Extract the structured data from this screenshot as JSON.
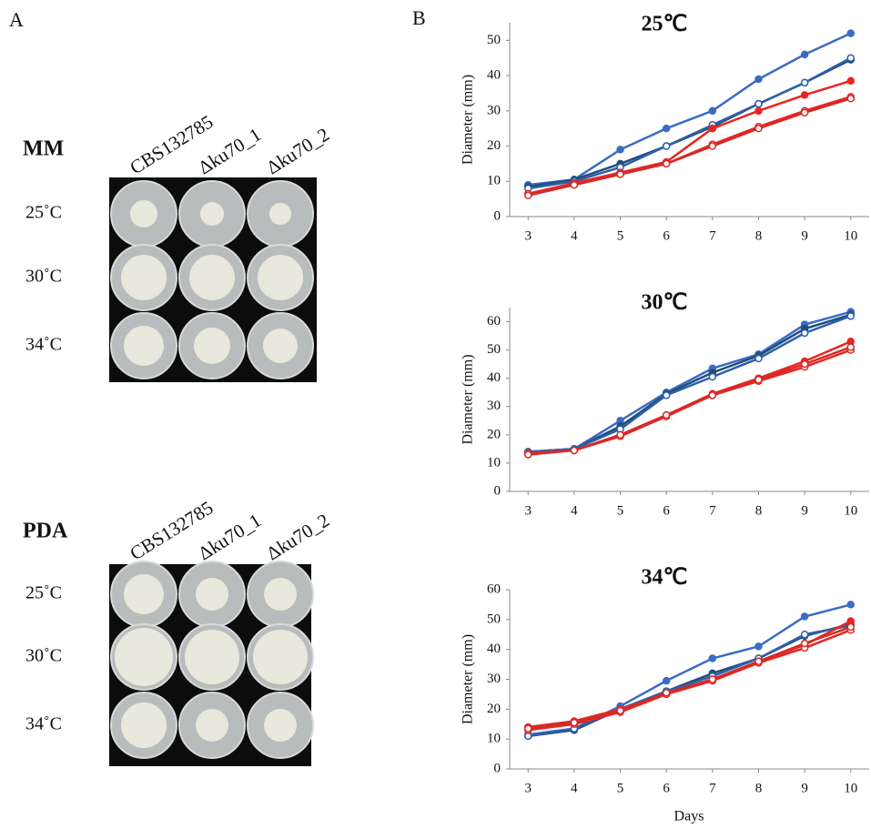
{
  "panel_a": {
    "label": "A",
    "groups": [
      {
        "medium": "MM",
        "columns": [
          "CBS132785",
          "Δku70_1",
          "Δku70_2"
        ],
        "rows": [
          "25˚C",
          "30˚C",
          "34˚C"
        ]
      },
      {
        "medium": "PDA",
        "columns": [
          "CBS132785",
          "Δku70_1",
          "Δku70_2"
        ],
        "rows": [
          "25˚C",
          "30˚C",
          "34˚C"
        ]
      }
    ]
  },
  "panel_b_label": "B",
  "chart_data": [
    {
      "type": "line",
      "title": "25℃",
      "y_label": "Diameter (mm)",
      "x": [
        3,
        4,
        5,
        6,
        7,
        8,
        9,
        10
      ],
      "xlim": [
        2.6,
        10.4
      ],
      "xticks": [
        3,
        4,
        5,
        6,
        7,
        8,
        9,
        10
      ],
      "ylim": [
        0,
        55
      ],
      "yticks": [
        0,
        10,
        20,
        30,
        40,
        50
      ],
      "series": [
        {
          "color": "#3a6cc4",
          "marker": "filled",
          "values": [
            9,
            10.5,
            19,
            25,
            30,
            39,
            46,
            52
          ]
        },
        {
          "color": "#1f4e79",
          "marker": "filled",
          "values": [
            8.5,
            10.5,
            15,
            20,
            25.5,
            32,
            38,
            44.5
          ]
        },
        {
          "color": "#2f5fa8",
          "marker": "open",
          "values": [
            8,
            10,
            14,
            20,
            26,
            32,
            38,
            45
          ]
        },
        {
          "color": "#e8261f",
          "marker": "filled",
          "values": [
            6.5,
            9.5,
            12.5,
            15.5,
            25,
            30,
            34.5,
            38.5
          ]
        },
        {
          "color": "#e8261f",
          "marker": "open",
          "values": [
            6.5,
            9,
            12,
            15,
            20.5,
            25.5,
            30,
            34
          ]
        },
        {
          "color": "#d42a2a",
          "marker": "open",
          "values": [
            6,
            9,
            12,
            15,
            20,
            25,
            29.5,
            33.5
          ]
        }
      ]
    },
    {
      "type": "line",
      "title": "30℃",
      "y_label": "Diameter (mm)",
      "x": [
        3,
        4,
        5,
        6,
        7,
        8,
        9,
        10
      ],
      "xlim": [
        2.6,
        10.4
      ],
      "xticks": [
        3,
        4,
        5,
        6,
        7,
        8,
        9,
        10
      ],
      "ylim": [
        0,
        65
      ],
      "yticks": [
        0,
        10,
        20,
        30,
        40,
        50,
        60
      ],
      "series": [
        {
          "color": "#3a6cc4",
          "marker": "filled",
          "values": [
            14,
            15,
            25,
            35,
            43.5,
            48.5,
            59,
            63.5
          ]
        },
        {
          "color": "#1f4e79",
          "marker": "filled",
          "values": [
            14,
            15,
            23,
            34.5,
            42,
            48,
            57.5,
            62.5
          ]
        },
        {
          "color": "#2f5fa8",
          "marker": "open",
          "values": [
            14,
            15,
            22,
            34,
            40.5,
            47,
            56,
            62
          ]
        },
        {
          "color": "#e8261f",
          "marker": "filled",
          "values": [
            13.5,
            14.5,
            20,
            27,
            34.5,
            40,
            46,
            53
          ]
        },
        {
          "color": "#e8261f",
          "marker": "open",
          "values": [
            13.5,
            14.5,
            19.5,
            26.5,
            34,
            39,
            44,
            50
          ]
        },
        {
          "color": "#d42a2a",
          "marker": "open",
          "values": [
            13,
            14.5,
            20,
            27,
            34,
            39.5,
            45,
            51
          ]
        }
      ]
    },
    {
      "type": "line",
      "title": "34℃",
      "y_label": "Diameter (mm)",
      "x_label": "Days",
      "x": [
        3,
        4,
        5,
        6,
        7,
        8,
        9,
        10
      ],
      "xlim": [
        2.6,
        10.4
      ],
      "xticks": [
        3,
        4,
        5,
        6,
        7,
        8,
        9,
        10
      ],
      "ylim": [
        0,
        60
      ],
      "yticks": [
        0,
        10,
        20,
        30,
        40,
        50,
        60
      ],
      "series": [
        {
          "color": "#3a6cc4",
          "marker": "filled",
          "values": [
            11.5,
            13.5,
            21,
            29.5,
            37,
            41,
            51,
            55
          ]
        },
        {
          "color": "#1f4e79",
          "marker": "filled",
          "values": [
            11,
            13,
            20,
            26,
            32,
            37,
            44.5,
            48.5
          ]
        },
        {
          "color": "#2f5fa8",
          "marker": "open",
          "values": [
            11,
            13.5,
            20,
            26,
            31,
            37,
            45,
            48
          ]
        },
        {
          "color": "#e8261f",
          "marker": "filled",
          "values": [
            14,
            16,
            20,
            25,
            30,
            36,
            41.5,
            49.5
          ]
        },
        {
          "color": "#e8261f",
          "marker": "open",
          "values": [
            13,
            15,
            19,
            25,
            29.5,
            35.5,
            40.5,
            46.5
          ]
        },
        {
          "color": "#d42a2a",
          "marker": "open",
          "values": [
            13.5,
            15.5,
            19.5,
            25.5,
            30,
            36,
            42,
            47.5
          ]
        }
      ]
    }
  ]
}
